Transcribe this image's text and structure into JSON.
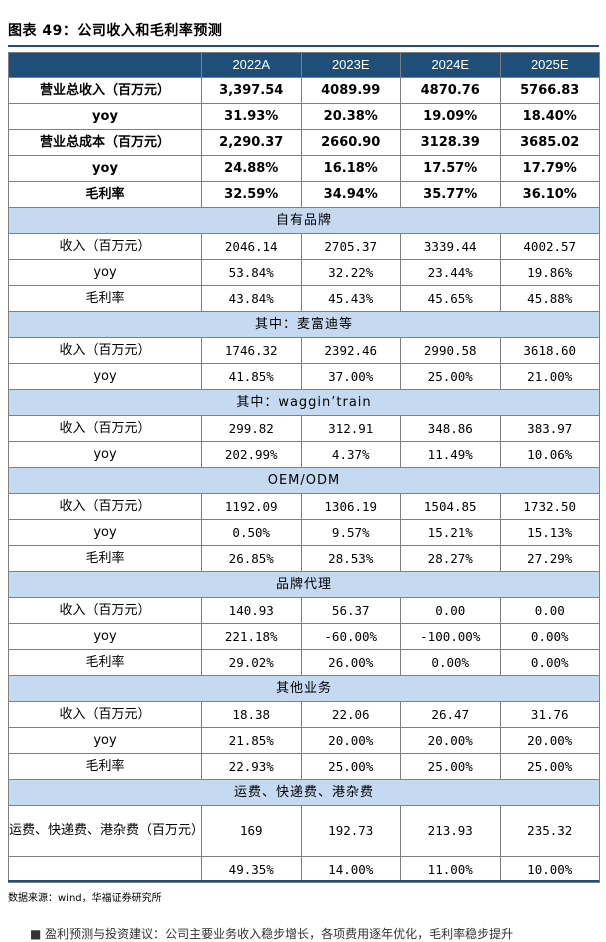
{
  "title": "图表 49：公司收入和毛利率预测",
  "header": [
    "",
    "2022A",
    "2023E",
    "2024E",
    "2025E"
  ],
  "summary_rows": [
    {
      "label": "营业总收入（百万元）",
      "values": [
        "3,397.54",
        "4089.99",
        "4870.76",
        "5766.83"
      ]
    },
    {
      "label": "yoy",
      "values": [
        "31.93%",
        "20.38%",
        "19.09%",
        "18.40%"
      ]
    },
    {
      "label": "营业总成本（百万元）",
      "values": [
        "2,290.37",
        "2660.90",
        "3128.39",
        "3685.02"
      ]
    },
    {
      "label": "yoy",
      "values": [
        "24.88%",
        "16.18%",
        "17.57%",
        "17.79%"
      ]
    },
    {
      "label": "毛利率",
      "values": [
        "32.59%",
        "34.94%",
        "35.77%",
        "36.10%"
      ]
    }
  ],
  "sections": [
    {
      "name": "自有品牌",
      "rows": [
        {
          "label": "收入（百万元）",
          "values": [
            "2046.14",
            "2705.37",
            "3339.44",
            "4002.57"
          ]
        },
        {
          "label": "yoy",
          "values": [
            "53.84%",
            "32.22%",
            "23.44%",
            "19.86%"
          ]
        },
        {
          "label": "毛利率",
          "values": [
            "43.84%",
            "45.43%",
            "45.65%",
            "45.88%"
          ]
        }
      ]
    },
    {
      "name": "其中：麦富迪等",
      "rows": [
        {
          "label": "收入（百万元）",
          "values": [
            "1746.32",
            "2392.46",
            "2990.58",
            "3618.60"
          ]
        },
        {
          "label": "yoy",
          "values": [
            "41.85%",
            "37.00%",
            "25.00%",
            "21.00%"
          ]
        }
      ]
    },
    {
      "name": "其中：waggin’train",
      "rows": [
        {
          "label": "收入（百万元）",
          "values": [
            "299.82",
            "312.91",
            "348.86",
            "383.97"
          ]
        },
        {
          "label": "yoy",
          "values": [
            "202.99%",
            "4.37%",
            "11.49%",
            "10.06%"
          ]
        }
      ]
    },
    {
      "name": "OEM/ODM",
      "rows": [
        {
          "label": "收入（百万元）",
          "values": [
            "1192.09",
            "1306.19",
            "1504.85",
            "1732.50"
          ]
        },
        {
          "label": "yoy",
          "values": [
            "0.50%",
            "9.57%",
            "15.21%",
            "15.13%"
          ]
        },
        {
          "label": "毛利率",
          "values": [
            "26.85%",
            "28.53%",
            "28.27%",
            "27.29%"
          ]
        }
      ]
    },
    {
      "name": "品牌代理",
      "rows": [
        {
          "label": "收入（百万元）",
          "values": [
            "140.93",
            "56.37",
            "0.00",
            "0.00"
          ]
        },
        {
          "label": "yoy",
          "values": [
            "221.18%",
            "-60.00%",
            "-100.00%",
            "0.00%"
          ]
        },
        {
          "label": "毛利率",
          "values": [
            "29.02%",
            "26.00%",
            "0.00%",
            "0.00%"
          ]
        }
      ]
    },
    {
      "name": "其他业务",
      "rows": [
        {
          "label": "收入（百万元）",
          "values": [
            "18.38",
            "22.06",
            "26.47",
            "31.76"
          ]
        },
        {
          "label": "yoy",
          "values": [
            "21.85%",
            "20.00%",
            "20.00%",
            "20.00%"
          ]
        },
        {
          "label": "毛利率",
          "values": [
            "22.93%",
            "25.00%",
            "25.00%",
            "25.00%"
          ]
        }
      ]
    },
    {
      "name": "运费、快递费、港杂费",
      "rows": [
        {
          "label": "运费、快递费、港杂费（百万元）",
          "values": [
            "169",
            "192.73",
            "213.93",
            "235.32"
          ]
        },
        {
          "label": "",
          "values": [
            "49.35%",
            "14.00%",
            "11.00%",
            "10.00%"
          ]
        }
      ]
    }
  ],
  "source": "数据来源：wind，华福证券研究所",
  "footer_cut": "■ 盈利预测与投资建议：公司主要业务收入稳步增长，各项费用逐年优化，毛利率稳步提升"
}
